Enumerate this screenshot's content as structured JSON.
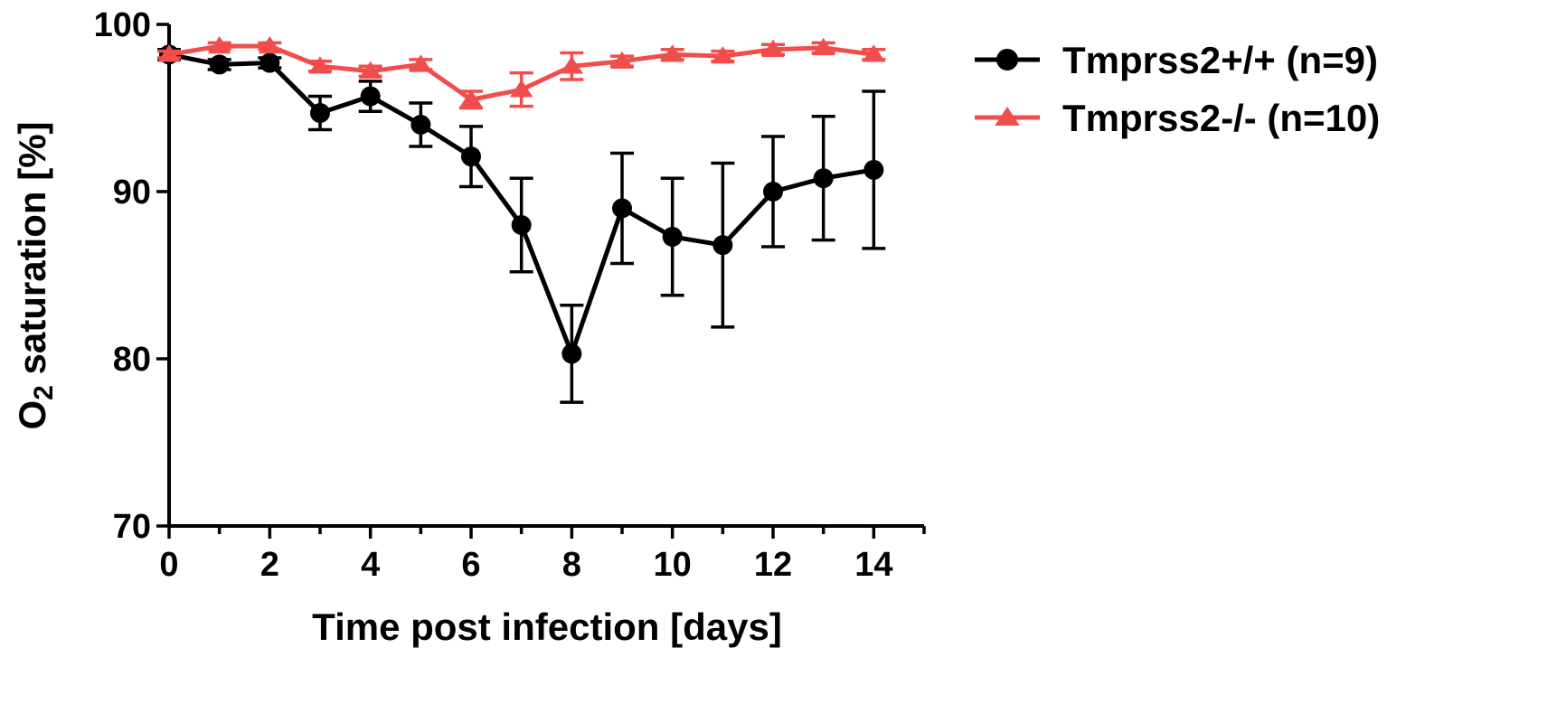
{
  "chart_data": {
    "type": "line",
    "xlabel": "Time post infection [days]",
    "ylabel": {
      "prefix": "O",
      "subscript": "2",
      "suffix": " saturation [%]"
    },
    "xlim": [
      0,
      15
    ],
    "ylim": [
      70,
      100
    ],
    "x_ticks": [
      0,
      2,
      4,
      6,
      8,
      10,
      12,
      14
    ],
    "y_ticks": [
      70,
      80,
      90,
      100
    ],
    "grid": false,
    "legend_position": "top-right",
    "x": [
      0,
      1,
      2,
      3,
      4,
      5,
      6,
      7,
      8,
      9,
      10,
      11,
      12,
      13,
      14
    ],
    "series": [
      {
        "name": "Tmprss2+/+ (n=9)",
        "color": "#000000",
        "marker": "circle",
        "values": [
          98.2,
          97.6,
          97.7,
          94.7,
          95.7,
          94.0,
          92.1,
          88.0,
          80.3,
          89.0,
          87.3,
          86.8,
          90.0,
          90.8,
          91.3
        ],
        "error": [
          0.3,
          0.3,
          0.3,
          1.0,
          0.9,
          1.3,
          1.8,
          2.8,
          2.9,
          3.3,
          3.5,
          4.9,
          3.3,
          3.7,
          4.7
        ]
      },
      {
        "name": "Tmprss2-/- (n=10)",
        "color": "#f24d4d",
        "marker": "triangle",
        "values": [
          98.2,
          98.7,
          98.7,
          97.5,
          97.2,
          97.6,
          95.5,
          96.1,
          97.5,
          97.8,
          98.2,
          98.1,
          98.5,
          98.6,
          98.2
        ],
        "error": [
          0.2,
          0.2,
          0.2,
          0.3,
          0.3,
          0.3,
          0.5,
          1.0,
          0.8,
          0.3,
          0.3,
          0.3,
          0.3,
          0.3,
          0.3
        ]
      }
    ]
  }
}
